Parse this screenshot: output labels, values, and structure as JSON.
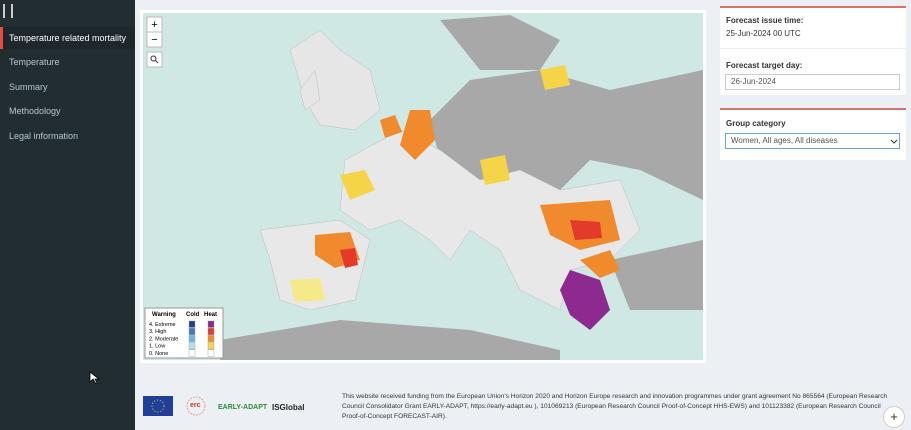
{
  "sidebar": {
    "nav": [
      "Temperature related mortality",
      "Temperature",
      "Summary",
      "Methodology",
      "Legal information"
    ]
  },
  "map": {
    "controls": [
      "+",
      "−"
    ],
    "legend": {
      "title": "Warning",
      "columns": [
        "Cold",
        "Heat"
      ],
      "levels": [
        "4. Extreme",
        "3. High",
        "2. Moderate",
        "1. Low",
        "0. None"
      ]
    }
  },
  "panel": {
    "issue_label": "Forecast issue time:",
    "issue_value": "25-Jun-2024 00 UTC",
    "target_label": "Forecast target day:",
    "target_value": "26-Jun-2024",
    "group_label": "Group category",
    "group_value": "Women, All ages, All diseases"
  },
  "footer": {
    "logos": [
      "erc",
      "EARLY-ADAPT",
      "ISGlobal"
    ],
    "text": "This website received funding from the European Union's Horizon 2020 and Horizon Europe research and innovation programmes under grant agreement No 865564 (European Research Council Consolidator Grant EARLY-ADAPT, https://early-adapt.eu ), 101069213 (European Research Council Proof-of-Concept HHS-EWS) and 101123382 (European Research Council Proof-of-Concept FORECAST-AIR)."
  },
  "fab": "+"
}
